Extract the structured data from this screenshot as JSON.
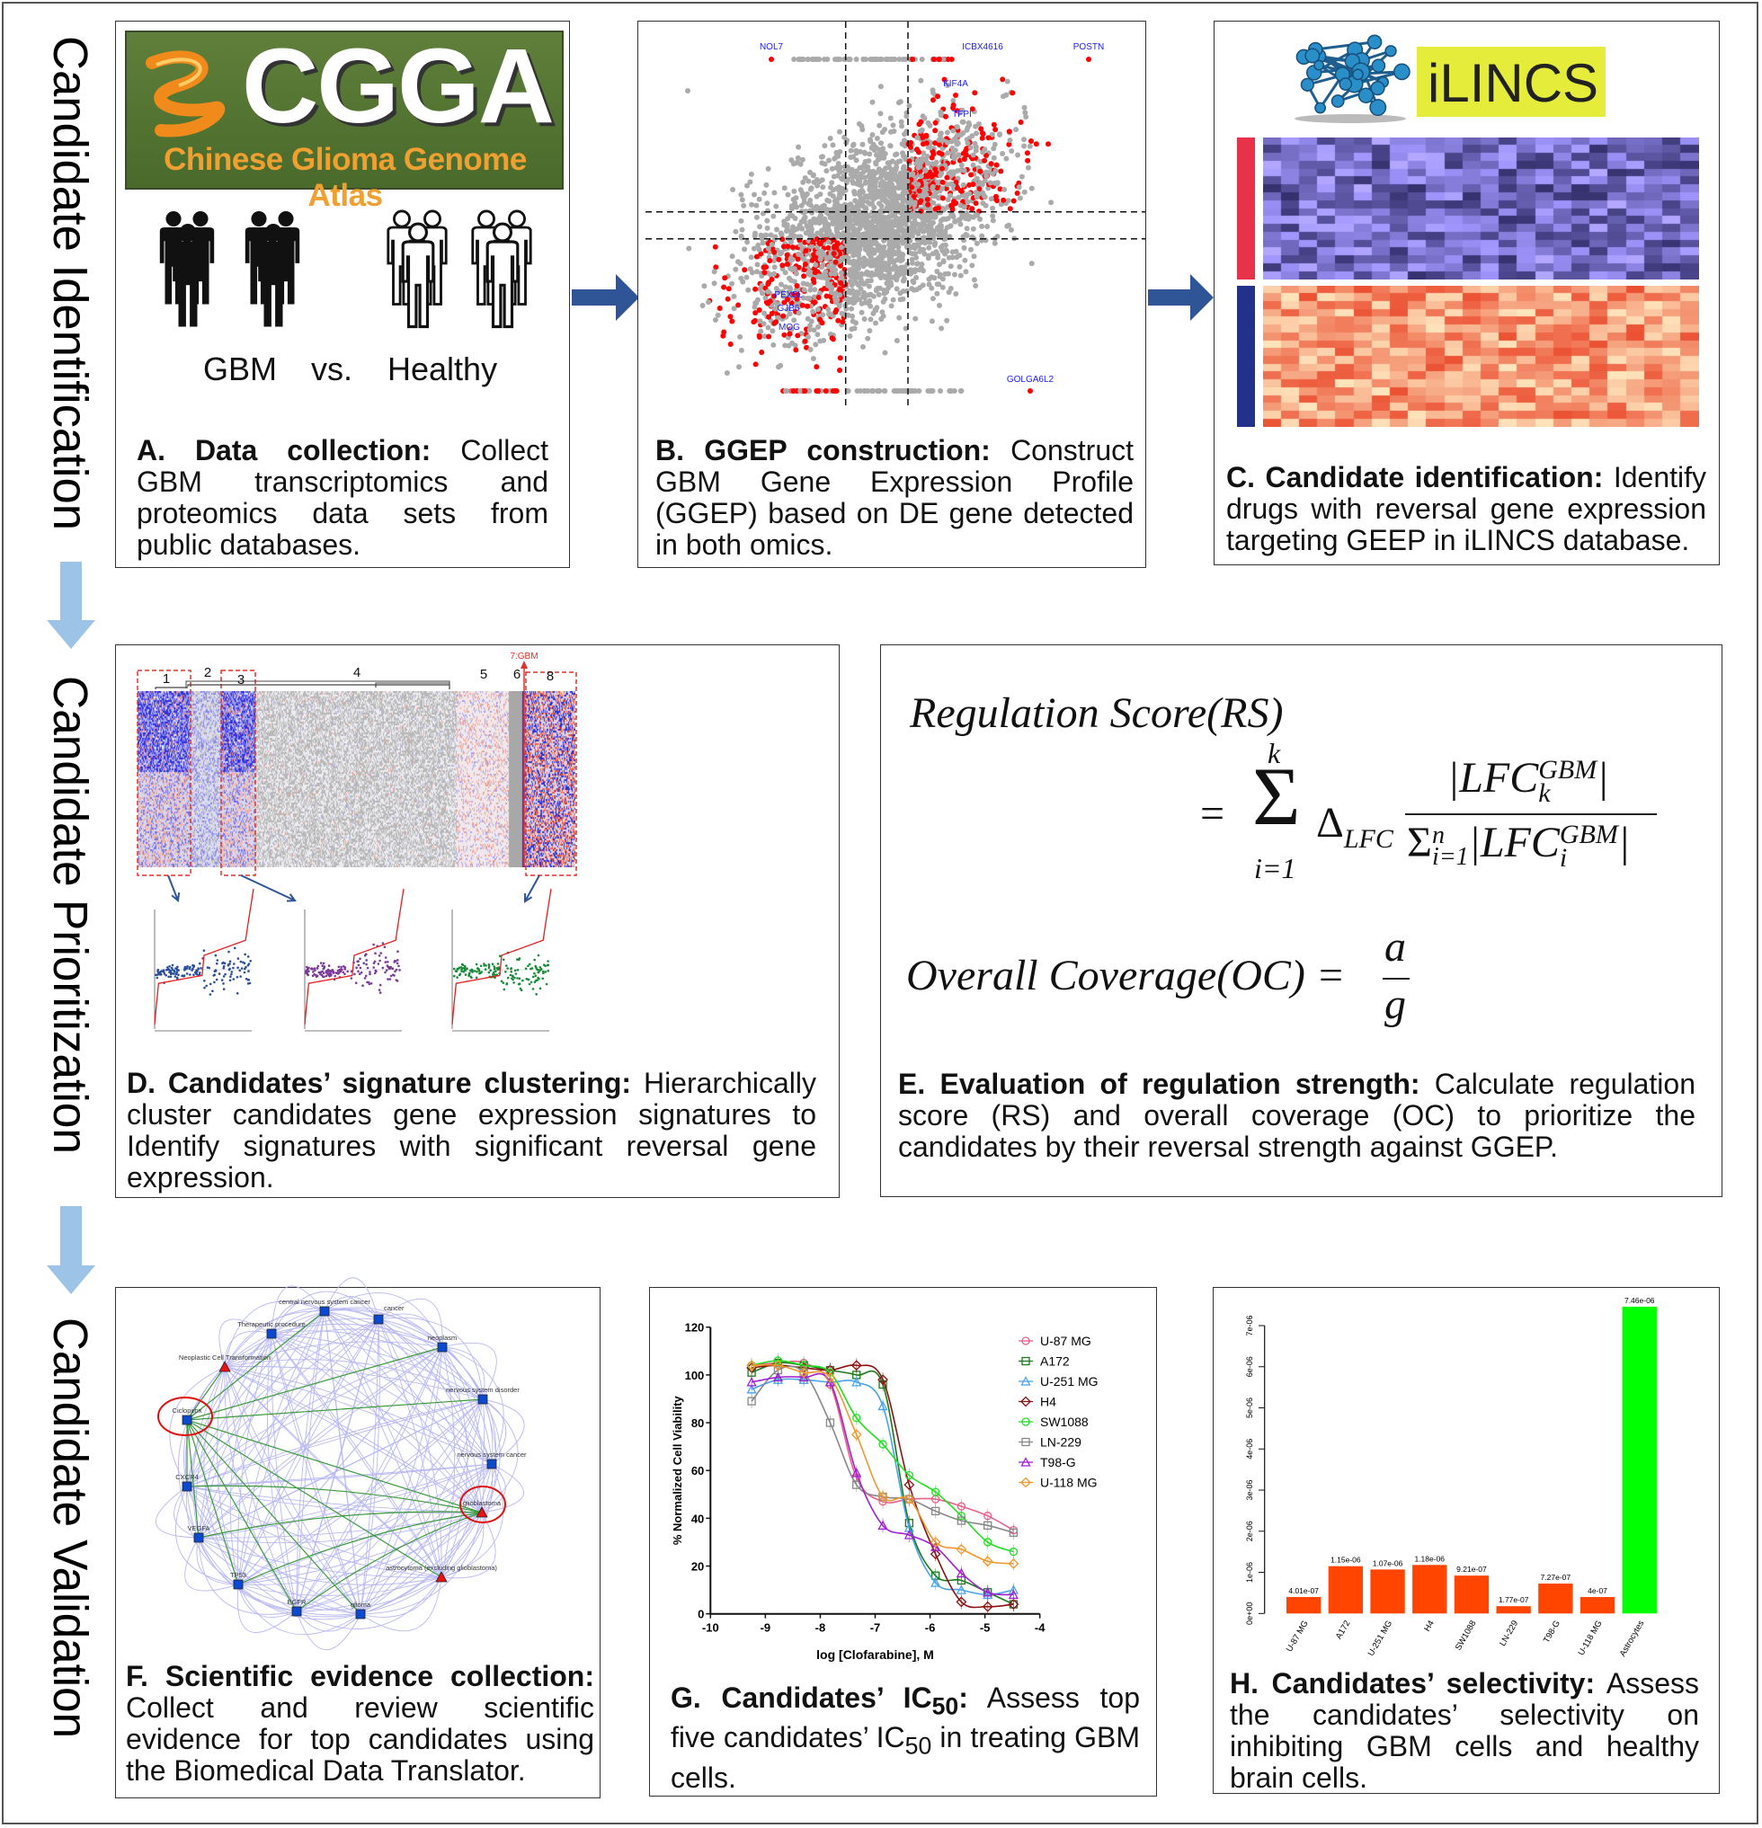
{
  "side_labels": [
    "Candidate Identification",
    "Candidate Prioritization",
    "Candidate Validation"
  ],
  "colors": {
    "flow_arrow_down": "#9dc3e6",
    "flow_arrow_right": "#2f5597",
    "up_regulated": "#ff0000",
    "non_significant": "#aaaaaa",
    "gene_label": "#1a1aff",
    "bar_gbm": "#ff4500",
    "bar_healthy": "#00ff00"
  },
  "panel_a": {
    "logo_title": "CGGA",
    "logo_subtitle": "Chinese Glioma Genome Atlas",
    "group_gbm": "GBM",
    "vs": "vs.",
    "group_healthy": "Healthy",
    "caption_bold": "A. Data collection:",
    "caption_text": " Collect GBM transcriptomics and proteomics data sets from public databases."
  },
  "panel_b": {
    "gene_labels": [
      "NOL7",
      "ICBX4616",
      "POSTN",
      "KIF4A",
      "TFPI",
      "PEX5L",
      "GJB6",
      "MOG",
      "GOLGA6L2"
    ],
    "caption_bold": "B. GGEP construction:",
    "caption_text": " Construct GBM Gene Expression Profile (GGEP) based on DE gene detected in both omics."
  },
  "panel_c": {
    "logo_text": "iLINCS",
    "caption_bold": "C. Candidate identification:",
    "caption_text": " Identify drugs with reversal gene expression targeting GEEP in iLINCS database."
  },
  "panel_d": {
    "cluster_labels": [
      "1",
      "2",
      "3",
      "4",
      "5",
      "6",
      "8"
    ],
    "gbm_label": "7:GBM",
    "caption_bold": "D. Candidates’ signature clustering:",
    "caption_text": " Hierarchically cluster candidates gene expression signatures to Identify signatures with significant reversal gene expression."
  },
  "panel_e": {
    "rs_title": "Regulation Score(RS)",
    "equals": "=",
    "sum_upper": "k",
    "sum_lower": "i=1",
    "delta": "Δ",
    "delta_sub": "LFC",
    "numerator": "|LFC",
    "num_sup": "GBM",
    "num_sub": "k",
    "denominator_sigma": "Σ",
    "den_sub": "i=1",
    "den_sup": "n",
    "denominator": "|LFC",
    "den_term_sup": "GBM",
    "den_term_sub": "i",
    "oc_title": "Overall Coverage(OC) =",
    "oc_num": "a",
    "oc_den": "g",
    "caption_bold": "E. Evaluation of regulation strength:",
    "caption_text": " Calculate regulation score (RS) and overall coverage (OC) to prioritize the candidates by their reversal strength against GGEP."
  },
  "panel_f": {
    "nodes": [
      {
        "label": "central nervous system cancer",
        "shape": "square"
      },
      {
        "label": "cancer",
        "shape": "square"
      },
      {
        "label": "Therapeutic procedure",
        "shape": "square"
      },
      {
        "label": "neoplasm",
        "shape": "square"
      },
      {
        "label": "Neoplastic Cell Transformation",
        "shape": "triangle"
      },
      {
        "label": "nervous system disorder",
        "shape": "square"
      },
      {
        "label": "Ciclopirox",
        "shape": "square",
        "highlighted": true
      },
      {
        "label": "nervous system cancer",
        "shape": "square"
      },
      {
        "label": "CXCR4",
        "shape": "square"
      },
      {
        "label": "glioblastoma",
        "shape": "triangle",
        "highlighted": true
      },
      {
        "label": "VEGFA",
        "shape": "square"
      },
      {
        "label": "astrocytoma (excluding glioblastoma)",
        "shape": "triangle"
      },
      {
        "label": "TP53",
        "shape": "square"
      },
      {
        "label": "EGFR",
        "shape": "square"
      },
      {
        "label": "glioma",
        "shape": "square"
      }
    ],
    "caption_bold": "F. Scientific evidence collection:",
    "caption_text": " Collect and review scientific evidence for top candidates using the Biomedical Data Translator."
  },
  "panel_g": {
    "caption_bold_a": "G. Candidates’ IC",
    "caption_bold_sub": "50",
    "caption_bold_b": ":",
    "caption_text_a": " Assess top five candidates’ IC",
    "caption_text_sub": "50",
    "caption_text_b": " in treating GBM cells."
  },
  "panel_h": {
    "caption_bold": "H. Candidates’ selectivity:",
    "caption_text": " Assess the candidates’ selectivity on inhibiting GBM cells and healthy brain cells."
  },
  "chart_data": [
    {
      "type": "line",
      "xlabel": "log [Clofarabine], M",
      "ylabel": "% Normalized Cell Viability",
      "xlim": [
        -10,
        -4
      ],
      "ylim": [
        0,
        120
      ],
      "xticks": [
        -10,
        -9,
        -8,
        -7,
        -6,
        -5,
        -4
      ],
      "yticks": [
        0,
        20,
        40,
        60,
        80,
        100,
        120
      ],
      "legend": "top-right",
      "x": [
        -9.25,
        -8.77,
        -8.3,
        -7.82,
        -7.34,
        -6.86,
        -6.38,
        -5.9,
        -5.43,
        -4.95,
        -4.48
      ],
      "series": [
        {
          "name": "U-87 MG",
          "marker": "circle",
          "color": "#e8608a",
          "values": [
            104,
            105,
            105,
            96,
            57,
            47,
            48,
            48,
            45,
            41,
            35
          ]
        },
        {
          "name": "A172",
          "marker": "square",
          "color": "#1a7a1a",
          "values": [
            101,
            105,
            104,
            102,
            100,
            96,
            38,
            16,
            14,
            9,
            4
          ]
        },
        {
          "name": "U-251 MG",
          "marker": "triangle",
          "color": "#4aa3e8",
          "values": [
            94,
            98,
            98,
            97,
            97,
            87,
            36,
            13,
            10,
            8,
            10
          ]
        },
        {
          "name": "H4",
          "marker": "diamond",
          "color": "#8b1010",
          "values": [
            103,
            104,
            103,
            102,
            104,
            98,
            54,
            25,
            5,
            3,
            4
          ]
        },
        {
          "name": "SW1088",
          "marker": "circle",
          "color": "#22dd22",
          "values": [
            104,
            106,
            104,
            101,
            82,
            71,
            58,
            51,
            41,
            30,
            26
          ]
        },
        {
          "name": "LN-229",
          "marker": "square",
          "color": "#888888",
          "values": [
            89,
            102,
            101,
            80,
            54,
            49,
            48,
            43,
            39,
            37,
            34
          ]
        },
        {
          "name": "T98-G",
          "marker": "triangle",
          "color": "#a020d0",
          "values": [
            97,
            99,
            99,
            97,
            59,
            37,
            33,
            28,
            17,
            9,
            8
          ]
        },
        {
          "name": "U-118 MG",
          "marker": "diamond",
          "color": "#f0982a",
          "values": [
            104,
            104,
            101,
            99,
            75,
            49,
            48,
            30,
            27,
            22,
            21
          ]
        }
      ]
    },
    {
      "type": "bar",
      "categories": [
        "U-87 MG",
        "A172",
        "U-251 MG",
        "H4",
        "SW1088",
        "LN-229",
        "T98-G",
        "U-118 MG",
        "Astrocytes"
      ],
      "values": [
        4.01e-07,
        1.15e-06,
        1.07e-06,
        1.18e-06,
        9.21e-07,
        1.77e-07,
        7.27e-07,
        4e-07,
        7.46e-06
      ],
      "data_labels": [
        "4.01e-07",
        "1.15e-06",
        "1.07e-06",
        "1.18e-06",
        "9.21e-07",
        "1.77e-07",
        "7.27e-07",
        "4e-07",
        "7.46e-06"
      ],
      "yticks": [
        "0e+00",
        "1e-06",
        "2e-06",
        "3e-06",
        "4e-06",
        "5e-06",
        "6e-06",
        "7e-06"
      ],
      "ylim": [
        0,
        7e-06
      ],
      "bar_colors": [
        "#ff4500",
        "#ff4500",
        "#ff4500",
        "#ff4500",
        "#ff4500",
        "#ff4500",
        "#ff4500",
        "#ff4500",
        "#00ff00"
      ]
    }
  ]
}
